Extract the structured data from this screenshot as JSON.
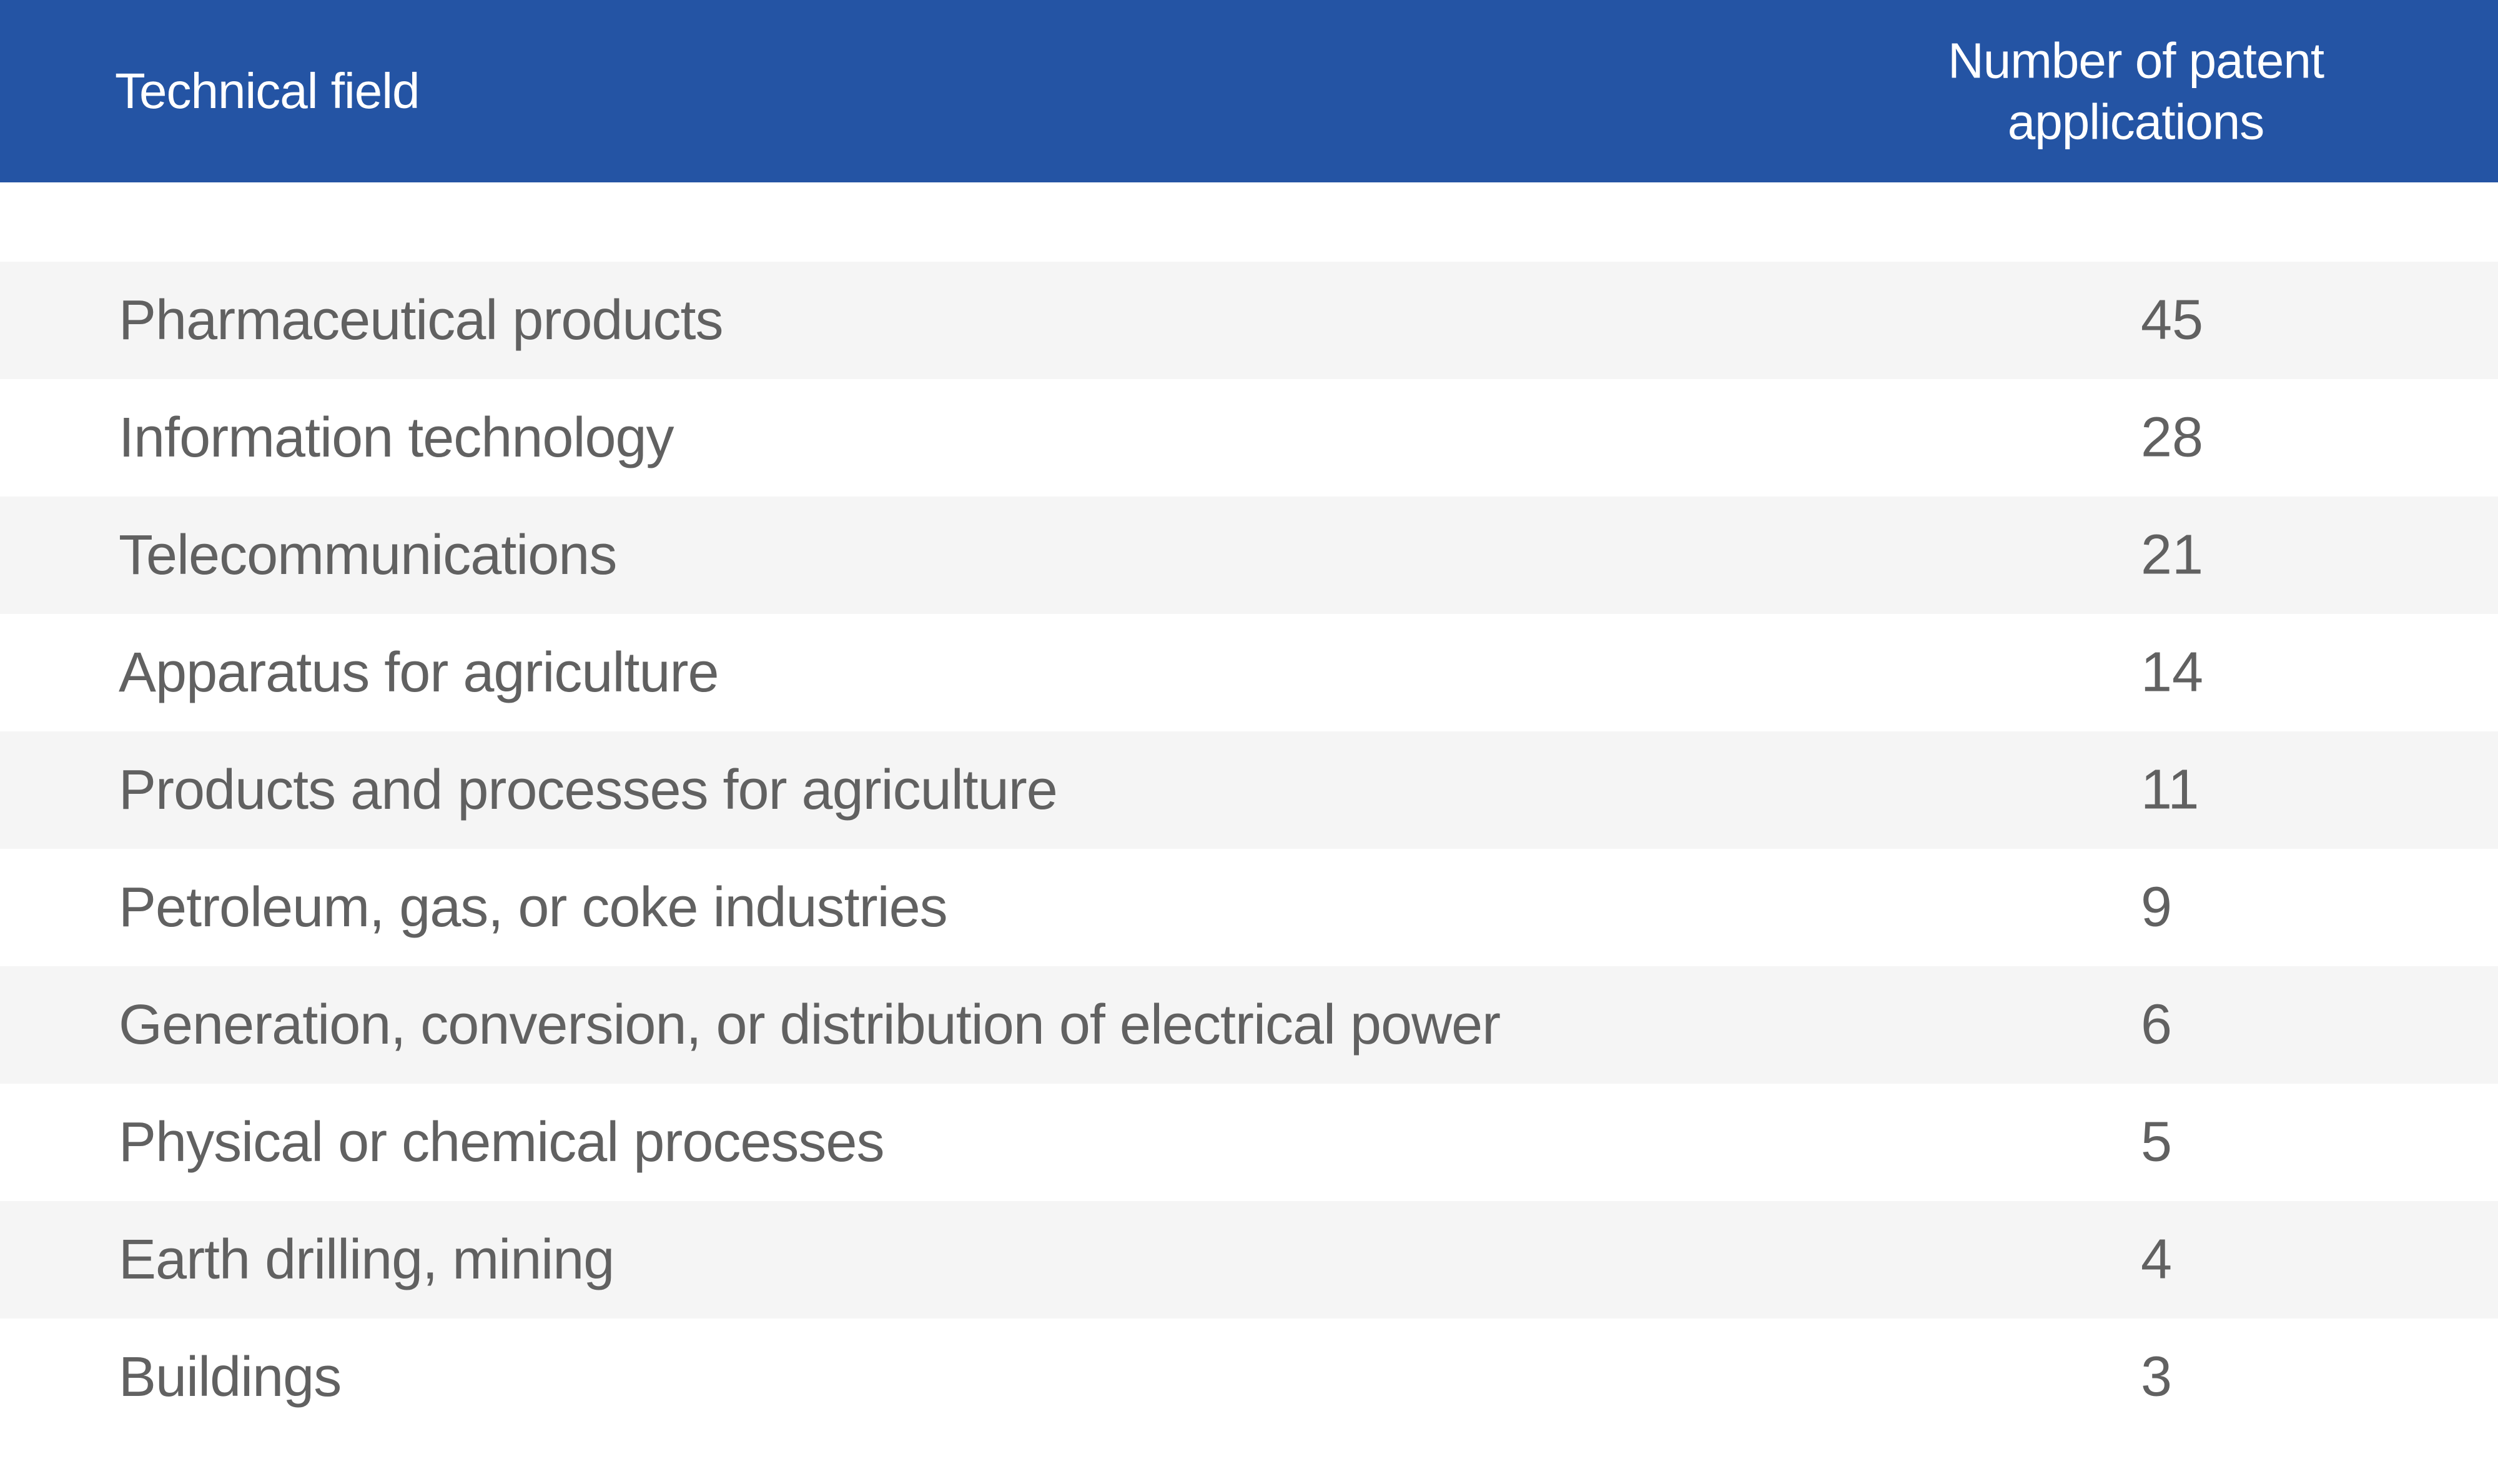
{
  "table": {
    "columns": {
      "field": "Technical field",
      "count": "Number of patent applications"
    },
    "rows": [
      {
        "field": "Pharmaceutical products",
        "value": "45"
      },
      {
        "field": "Information technology",
        "value": "28"
      },
      {
        "field": "Telecommunications",
        "value": "21"
      },
      {
        "field": "Apparatus for agriculture",
        "value": "14"
      },
      {
        "field": "Products and processes for agriculture",
        "value": "11"
      },
      {
        "field": "Petroleum, gas, or coke industries",
        "value": "9"
      },
      {
        "field": "Generation, conversion, or distribution of electrical power",
        "value": "6"
      },
      {
        "field": "Physical or chemical processes",
        "value": "5"
      },
      {
        "field": "Earth drilling, mining",
        "value": "4"
      },
      {
        "field": "Buildings",
        "value": "3"
      }
    ]
  },
  "colors": {
    "header_bg": "#2454a4",
    "header_text": "#ffffff",
    "row_alt_bg": "#f5f5f5",
    "row_text": "#616161"
  },
  "chart_data": {
    "type": "table",
    "title": "",
    "columns": [
      "Technical field",
      "Number of patent applications"
    ],
    "categories": [
      "Pharmaceutical products",
      "Information technology",
      "Telecommunications",
      "Apparatus for agriculture",
      "Products and processes for agriculture",
      "Petroleum, gas, or coke industries",
      "Generation, conversion, or distribution of electrical power",
      "Physical or chemical processes",
      "Earth drilling, mining",
      "Buildings"
    ],
    "values": [
      45,
      28,
      21,
      14,
      11,
      9,
      6,
      5,
      4,
      3
    ]
  }
}
